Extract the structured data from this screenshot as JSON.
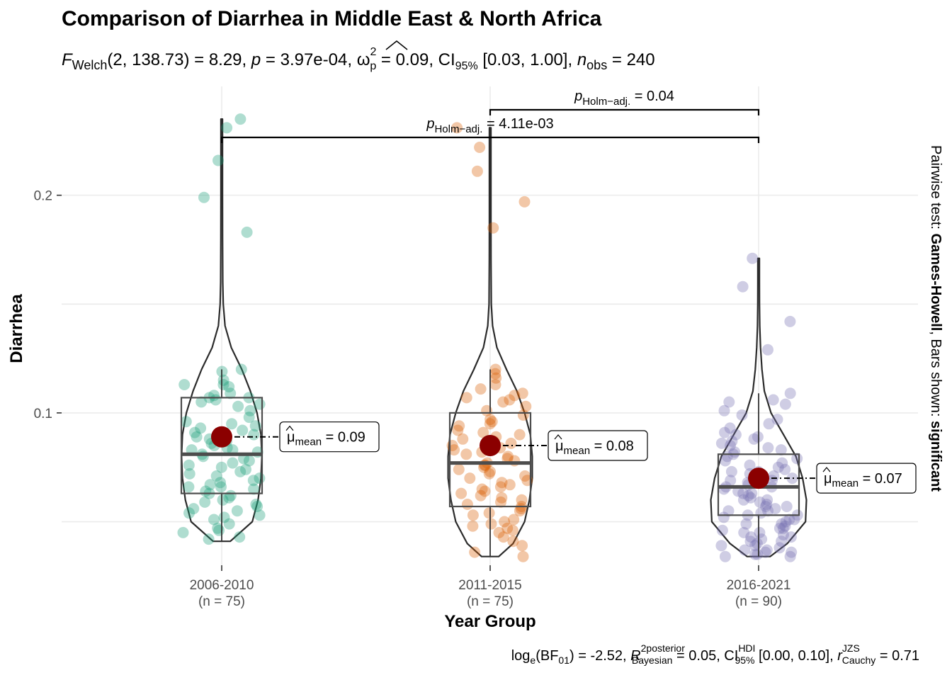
{
  "chart_data": {
    "type": "violin-box-jitter",
    "title": "Comparison of Diarrhea in Middle East & North Africa",
    "subtitle": {
      "F_sub": "Welch",
      "df1": "2",
      "df2": "138.73",
      "statistic": "8.29",
      "p": "3.97e-04",
      "omega_sq": "0.09",
      "ci_label": "95%",
      "ci": "[0.03, 1.00]",
      "n_sub": "obs",
      "n_obs": "240"
    },
    "xlabel": "Year Group",
    "ylabel": "Diarrhea",
    "ylim": [
      0.03,
      0.25
    ],
    "y_ticks": [
      0.1,
      0.2
    ],
    "y_tick_labels": [
      "0.1",
      "0.2"
    ],
    "y_minor": [
      0.05,
      0.15
    ],
    "colors": {
      "2006-2010": "#1b9e77",
      "2011-2015": "#d95f02",
      "2016-2021": "#7570b3",
      "mean_point": "#8b0000"
    },
    "groups": [
      {
        "name": "2006-2010",
        "n_label": "(n = 75)",
        "mean_label": "= 0.09",
        "mean": 0.089,
        "box": {
          "q1": 0.063,
          "median": 0.081,
          "q3": 0.107,
          "whisker_low": 0.041,
          "whisker_high": 0.12
        },
        "range": [
          0.041,
          0.235
        ],
        "density": [
          [
            0.041,
            0.9
          ],
          [
            0.05,
            3.2
          ],
          [
            0.06,
            3.8
          ],
          [
            0.07,
            4.1
          ],
          [
            0.08,
            4.2
          ],
          [
            0.09,
            4.1
          ],
          [
            0.1,
            3.7
          ],
          [
            0.11,
            3.0
          ],
          [
            0.12,
            2.1
          ],
          [
            0.13,
            1.0
          ],
          [
            0.14,
            0.35
          ],
          [
            0.15,
            0.16
          ],
          [
            0.16,
            0.11
          ],
          [
            0.18,
            0.09
          ],
          [
            0.2,
            0.08
          ],
          [
            0.22,
            0.08
          ],
          [
            0.235,
            0.08
          ]
        ],
        "points": [
          0.235,
          0.231,
          0.216,
          0.199,
          0.183,
          0.12,
          0.119,
          0.115,
          0.113,
          0.113,
          0.112,
          0.109,
          0.108,
          0.107,
          0.107,
          0.106,
          0.105,
          0.104,
          0.103,
          0.101,
          0.098,
          0.096,
          0.095,
          0.094,
          0.093,
          0.092,
          0.091,
          0.09,
          0.089,
          0.088,
          0.087,
          0.086,
          0.085,
          0.084,
          0.083,
          0.083,
          0.082,
          0.081,
          0.08,
          0.079,
          0.078,
          0.077,
          0.076,
          0.075,
          0.074,
          0.073,
          0.072,
          0.071,
          0.07,
          0.069,
          0.068,
          0.067,
          0.066,
          0.066,
          0.065,
          0.064,
          0.063,
          0.062,
          0.061,
          0.06,
          0.059,
          0.058,
          0.057,
          0.056,
          0.055,
          0.054,
          0.053,
          0.052,
          0.051,
          0.049,
          0.047,
          0.046,
          0.045,
          0.043,
          0.042
        ]
      },
      {
        "name": "2011-2015",
        "n_label": "(n = 75)",
        "mean_label": "= 0.08",
        "mean": 0.085,
        "box": {
          "q1": 0.057,
          "median": 0.077,
          "q3": 0.1,
          "whisker_low": 0.034,
          "whisker_high": 0.12
        },
        "range": [
          0.034,
          0.231
        ],
        "density": [
          [
            0.034,
            0.9
          ],
          [
            0.04,
            2.4
          ],
          [
            0.05,
            3.6
          ],
          [
            0.06,
            4.1
          ],
          [
            0.07,
            4.4
          ],
          [
            0.08,
            4.4
          ],
          [
            0.09,
            4.2
          ],
          [
            0.1,
            3.6
          ],
          [
            0.11,
            2.8
          ],
          [
            0.12,
            1.7
          ],
          [
            0.13,
            0.7
          ],
          [
            0.14,
            0.25
          ],
          [
            0.15,
            0.12
          ],
          [
            0.17,
            0.09
          ],
          [
            0.19,
            0.08
          ],
          [
            0.21,
            0.08
          ],
          [
            0.231,
            0.08
          ]
        ],
        "points": [
          0.231,
          0.222,
          0.211,
          0.197,
          0.185,
          0.12,
          0.118,
          0.116,
          0.113,
          0.111,
          0.109,
          0.108,
          0.107,
          0.106,
          0.105,
          0.103,
          0.101,
          0.099,
          0.097,
          0.096,
          0.095,
          0.094,
          0.092,
          0.091,
          0.09,
          0.089,
          0.088,
          0.087,
          0.086,
          0.085,
          0.084,
          0.083,
          0.082,
          0.081,
          0.08,
          0.079,
          0.078,
          0.077,
          0.076,
          0.076,
          0.075,
          0.074,
          0.073,
          0.072,
          0.071,
          0.07,
          0.069,
          0.068,
          0.067,
          0.066,
          0.065,
          0.064,
          0.063,
          0.062,
          0.061,
          0.06,
          0.059,
          0.058,
          0.057,
          0.056,
          0.055,
          0.054,
          0.053,
          0.051,
          0.05,
          0.049,
          0.048,
          0.047,
          0.046,
          0.045,
          0.043,
          0.041,
          0.039,
          0.036,
          0.034
        ]
      },
      {
        "name": "2016-2021",
        "n_label": "(n = 90)",
        "mean_label": "= 0.07",
        "mean": 0.07,
        "box": {
          "q1": 0.053,
          "median": 0.066,
          "q3": 0.081,
          "whisker_low": 0.034,
          "whisker_high": 0.109
        },
        "range": [
          0.034,
          0.171
        ],
        "density": [
          [
            0.034,
            1.2
          ],
          [
            0.04,
            3.0
          ],
          [
            0.05,
            4.9
          ],
          [
            0.06,
            5.0
          ],
          [
            0.07,
            4.6
          ],
          [
            0.08,
            3.9
          ],
          [
            0.09,
            2.6
          ],
          [
            0.1,
            1.3
          ],
          [
            0.11,
            0.6
          ],
          [
            0.12,
            0.35
          ],
          [
            0.13,
            0.2
          ],
          [
            0.14,
            0.12
          ],
          [
            0.15,
            0.09
          ],
          [
            0.16,
            0.08
          ],
          [
            0.171,
            0.08
          ]
        ],
        "points": [
          0.171,
          0.158,
          0.142,
          0.129,
          0.109,
          0.106,
          0.105,
          0.104,
          0.101,
          0.099,
          0.097,
          0.095,
          0.093,
          0.091,
          0.09,
          0.089,
          0.088,
          0.087,
          0.086,
          0.085,
          0.084,
          0.083,
          0.082,
          0.081,
          0.08,
          0.079,
          0.078,
          0.077,
          0.076,
          0.075,
          0.074,
          0.073,
          0.073,
          0.072,
          0.071,
          0.07,
          0.069,
          0.069,
          0.068,
          0.067,
          0.066,
          0.066,
          0.065,
          0.064,
          0.063,
          0.063,
          0.062,
          0.061,
          0.06,
          0.06,
          0.059,
          0.058,
          0.057,
          0.057,
          0.056,
          0.055,
          0.055,
          0.054,
          0.053,
          0.053,
          0.052,
          0.051,
          0.051,
          0.05,
          0.049,
          0.049,
          0.048,
          0.047,
          0.047,
          0.046,
          0.045,
          0.045,
          0.044,
          0.043,
          0.043,
          0.042,
          0.041,
          0.041,
          0.04,
          0.039,
          0.039,
          0.038,
          0.037,
          0.037,
          0.036,
          0.036,
          0.035,
          0.035,
          0.034,
          0.034
        ]
      }
    ],
    "pairwise": [
      {
        "from": "2011-2015",
        "to": "2016-2021",
        "p_label": "= 0.04",
        "level": 2
      },
      {
        "from": "2006-2010",
        "to": "2016-2021",
        "p_label": "= 4.11e-03",
        "level": 1
      }
    ],
    "pairwise_p_sub": "Holm−adj.",
    "mean_sub": "mean",
    "side_note": {
      "prefix": "Pairwise test: ",
      "test": "Games-Howell",
      "middle": ", Bars shown: ",
      "shown": "significant"
    },
    "caption": {
      "bf": "= -2.52,",
      "r2_sup": "2",
      "r2_posterior": "posterior",
      "r2_bayesian": "Bayesian",
      "r2_val": "= 0.05,",
      "ci_sup": "HDI",
      "ci_sub": "95%",
      "ci_val": "[0.00, 0.10],",
      "r_sup": "JZS",
      "r_sub": "Cauchy",
      "r_val": "= 0.71"
    }
  }
}
